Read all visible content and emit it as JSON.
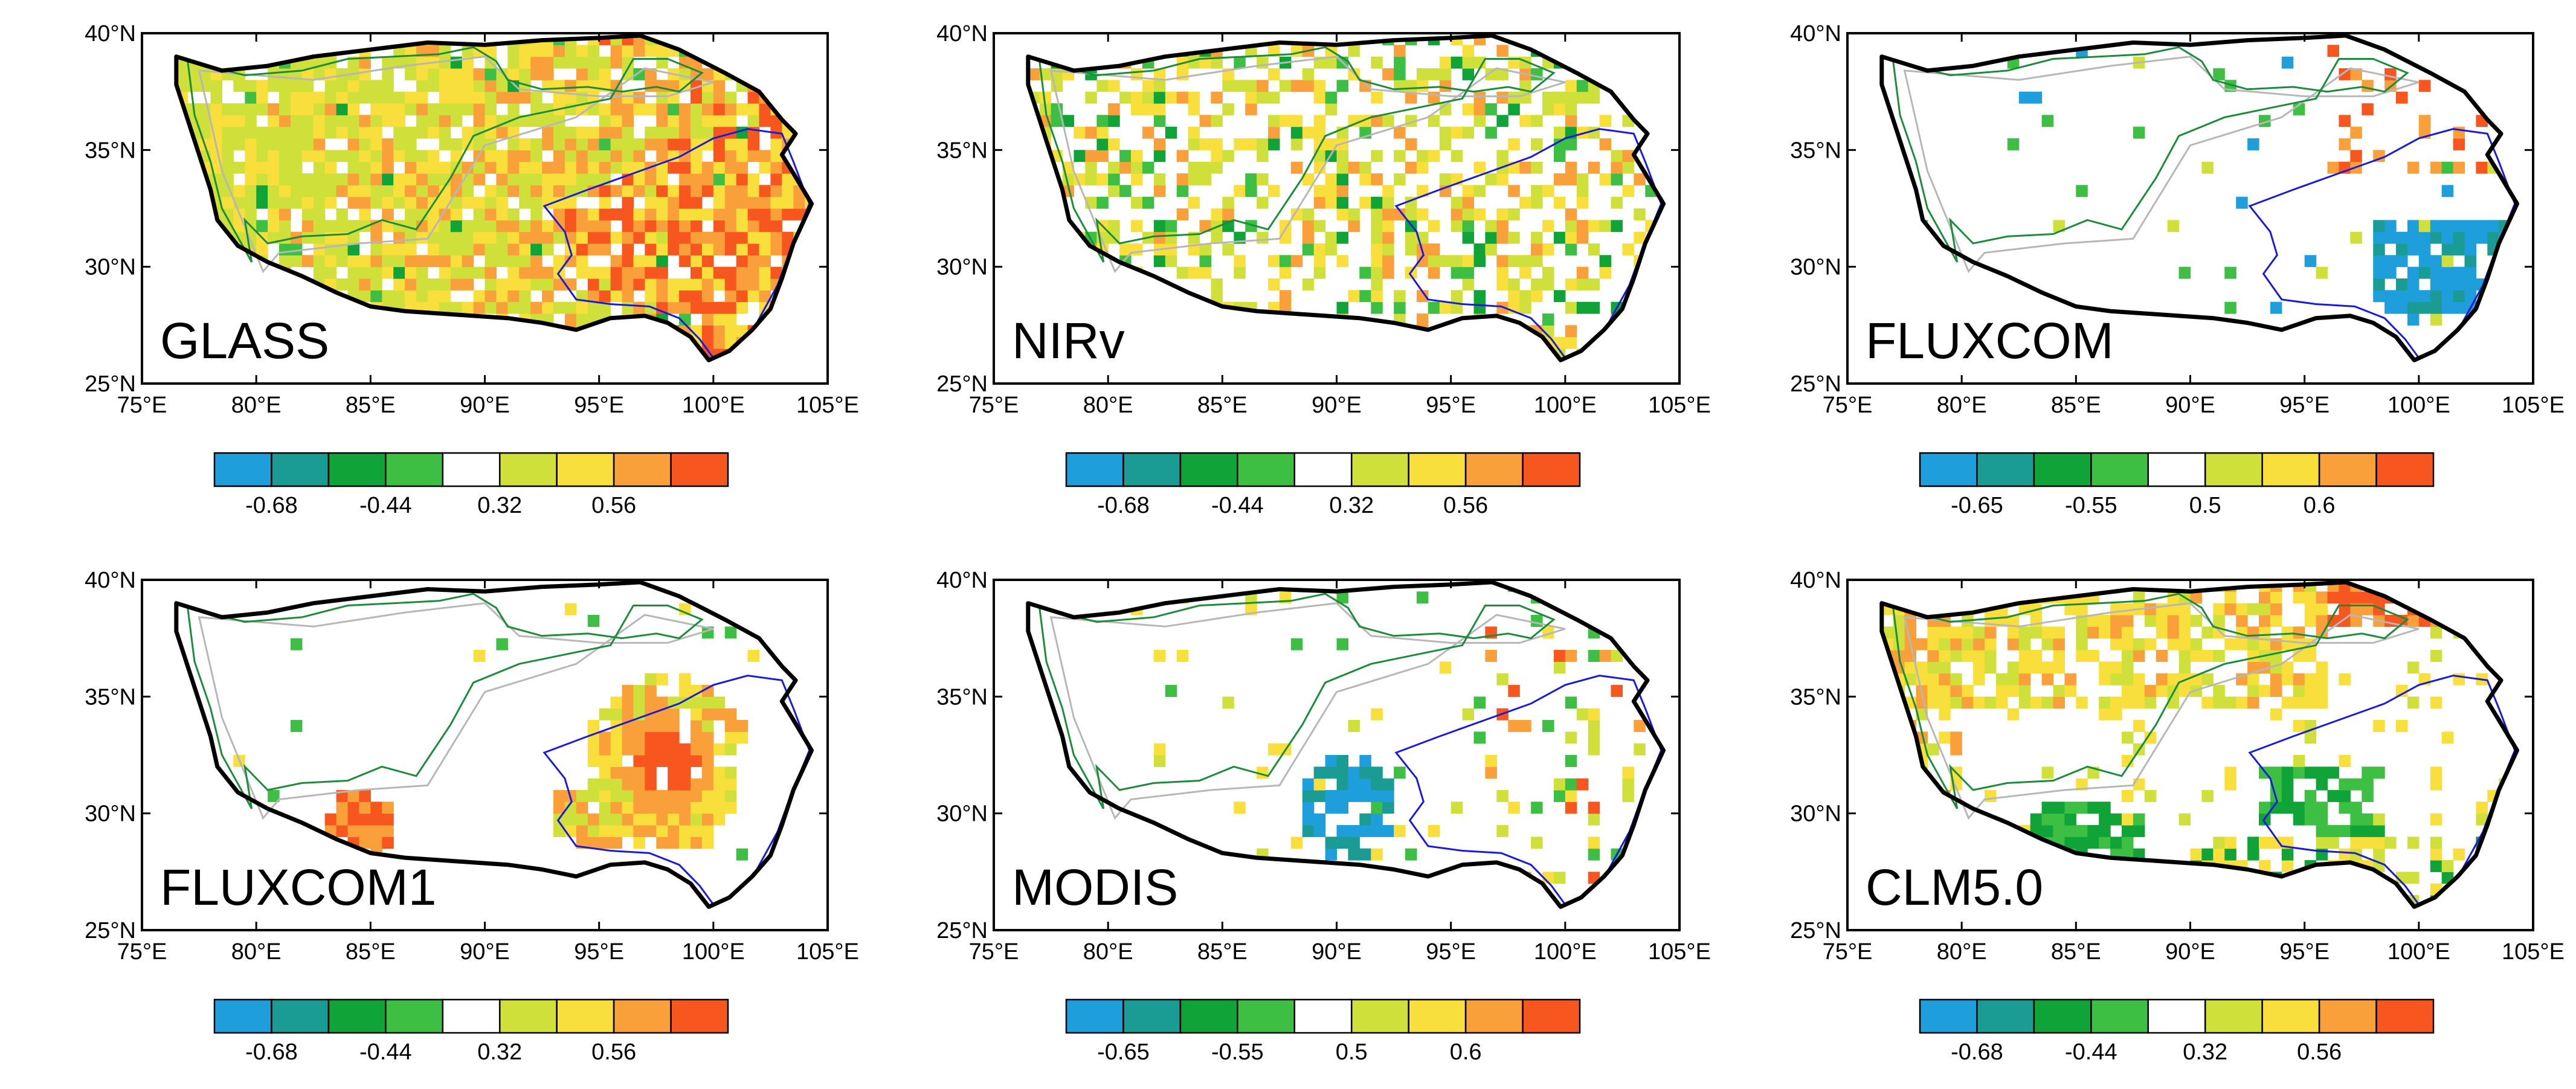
{
  "figure": {
    "colorbar_colors": [
      "#1e9fdc",
      "#1a9c94",
      "#10a338",
      "#3cbf42",
      "#ffffff",
      "#cfe03a",
      "#f9df3c",
      "#f9a03a",
      "#f7571e"
    ],
    "outline_colors": {
      "plateau": "#000000",
      "blue_region": "#1a1adb",
      "green_region": "#1a8c3a",
      "gray_mask": "#b7b7b7"
    },
    "lon_ticks": [
      "75°E",
      "80°E",
      "85°E",
      "90°E",
      "95°E",
      "100°E",
      "105°E"
    ],
    "lat_ticks": [
      "40°N",
      "35°N",
      "30°N",
      "25°N"
    ],
    "lon_range": [
      75,
      105
    ],
    "lat_range": [
      25,
      40
    ]
  },
  "panels": [
    {
      "title": "GLASS",
      "colorbar_labels": [
        "-0.68",
        "-0.44",
        "0.32",
        "0.56"
      ],
      "pattern": "dense-warm"
    },
    {
      "title": "NIRv",
      "colorbar_labels": [
        "-0.68",
        "-0.44",
        "0.32",
        "0.56"
      ],
      "pattern": "sparse-mixed"
    },
    {
      "title": "FLUXCOM",
      "colorbar_labels": [
        "-0.65",
        "-0.55",
        "0.5",
        "0.6"
      ],
      "pattern": "southeast-cool"
    },
    {
      "title": "FLUXCOM1",
      "colorbar_labels": [
        "-0.68",
        "-0.44",
        "0.32",
        "0.56"
      ],
      "pattern": "southeast-warm-blob"
    },
    {
      "title": "MODIS",
      "colorbar_labels": [
        "-0.65",
        "-0.55",
        "0.5",
        "0.6"
      ],
      "pattern": "central-cool"
    },
    {
      "title": "CLM5.0",
      "colorbar_labels": [
        "-0.68",
        "-0.44",
        "0.32",
        "0.56"
      ],
      "pattern": "northwest-warm"
    }
  ]
}
